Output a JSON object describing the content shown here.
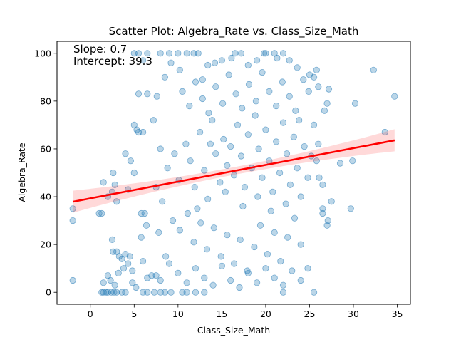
{
  "chart_data": {
    "type": "scatter",
    "title": "Scatter Plot: Algebra_Rate vs. Class_Size_Math",
    "xlabel": "Class_Size_Math",
    "ylabel": "Algebra_Rate",
    "xlim": [
      -3.8,
      36.5
    ],
    "ylim": [
      -5,
      105
    ],
    "xticks": [
      0,
      5,
      10,
      15,
      20,
      25,
      30,
      35
    ],
    "yticks": [
      0,
      20,
      40,
      60,
      80,
      100
    ],
    "grid": false,
    "annotations": [
      {
        "id": "slope",
        "text": "Slope: 0.7"
      },
      {
        "id": "intercept",
        "text": "Intercept: 39.3"
      }
    ],
    "point_color": "#1f77b4",
    "point_alpha": 0.3,
    "series": [
      {
        "values": [
          [
            -2.0,
            35
          ],
          [
            -2.0,
            30
          ],
          [
            -2.0,
            5
          ],
          [
            1.0,
            33
          ],
          [
            1.3,
            33
          ],
          [
            1.5,
            46
          ],
          [
            2.0,
            40
          ],
          [
            2.5,
            42
          ],
          [
            2.6,
            50
          ],
          [
            2.8,
            45
          ],
          [
            3.0,
            38
          ],
          [
            2.5,
            22
          ],
          [
            2.6,
            17
          ],
          [
            3.0,
            17
          ],
          [
            3.3,
            15
          ],
          [
            3.6,
            14
          ],
          [
            4.0,
            16
          ],
          [
            4.5,
            15
          ],
          [
            4.8,
            9
          ],
          [
            1.3,
            0
          ],
          [
            1.5,
            0
          ],
          [
            1.8,
            0
          ],
          [
            2.0,
            0
          ],
          [
            2.4,
            0
          ],
          [
            2.7,
            0
          ],
          [
            3.0,
            0
          ],
          [
            3.6,
            0
          ],
          [
            4.0,
            0
          ],
          [
            1.5,
            4
          ],
          [
            2.0,
            7
          ],
          [
            2.3,
            5
          ],
          [
            2.8,
            3
          ],
          [
            3.2,
            8
          ],
          [
            3.8,
            10
          ],
          [
            4.3,
            12
          ],
          [
            4.8,
            4
          ],
          [
            5.2,
            2
          ],
          [
            6.0,
            0
          ],
          [
            6.5,
            0
          ],
          [
            7.3,
            0
          ],
          [
            8.0,
            0
          ],
          [
            8.5,
            0
          ],
          [
            9.2,
            0
          ],
          [
            10.5,
            0
          ],
          [
            11.0,
            0
          ],
          [
            12.0,
            0
          ],
          [
            13.0,
            0
          ],
          [
            22.0,
            0
          ],
          [
            25.5,
            0
          ],
          [
            5.0,
            100
          ],
          [
            5.5,
            100
          ],
          [
            6.0,
            97
          ],
          [
            6.5,
            100
          ],
          [
            8.0,
            100
          ],
          [
            9.0,
            100
          ],
          [
            10.0,
            100
          ],
          [
            11.0,
            100
          ],
          [
            11.8,
            100
          ],
          [
            12.3,
            100
          ],
          [
            16.5,
            100
          ],
          [
            17.2,
            100
          ],
          [
            19.8,
            100
          ],
          [
            20.0,
            100
          ],
          [
            21.0,
            100
          ],
          [
            22.0,
            100
          ],
          [
            5.0,
            70
          ],
          [
            5.3,
            68
          ],
          [
            5.5,
            67
          ],
          [
            6.0,
            67
          ],
          [
            5.5,
            83
          ],
          [
            6.5,
            83
          ],
          [
            4.0,
            58
          ],
          [
            4.6,
            55
          ],
          [
            5.0,
            50
          ],
          [
            4.3,
            43
          ],
          [
            5.8,
            33
          ],
          [
            6.2,
            33
          ],
          [
            6.4,
            28
          ],
          [
            5.8,
            23
          ],
          [
            6.0,
            13
          ],
          [
            7.0,
            7
          ],
          [
            6.5,
            6
          ],
          [
            7.5,
            7
          ],
          [
            8.0,
            5
          ],
          [
            28.5,
            54
          ],
          [
            27.5,
            38
          ],
          [
            29.7,
            35
          ],
          [
            29.9,
            55
          ],
          [
            30.2,
            79
          ],
          [
            32.3,
            93
          ],
          [
            33.6,
            67
          ],
          [
            34.7,
            82
          ],
          [
            27.0,
            28
          ],
          [
            27.1,
            30
          ],
          [
            26.5,
            33
          ],
          [
            26.5,
            45
          ],
          [
            26.1,
            48
          ],
          [
            26.5,
            35
          ],
          [
            27.2,
            85
          ],
          [
            26.0,
            86
          ],
          [
            26.7,
            76
          ],
          [
            27.0,
            79
          ],
          [
            25.5,
            90
          ],
          [
            25.0,
            91
          ],
          [
            25.8,
            93
          ],
          [
            7.2,
            72
          ],
          [
            7.6,
            82
          ],
          [
            8.5,
            90
          ],
          [
            9.2,
            96
          ],
          [
            10.2,
            93
          ],
          [
            12.8,
            89
          ],
          [
            13.4,
            95
          ],
          [
            14.2,
            96
          ],
          [
            15.0,
            97
          ],
          [
            16.1,
            98
          ],
          [
            18.0,
            95
          ],
          [
            19.0,
            97
          ],
          [
            21.3,
            98
          ],
          [
            22.7,
            97
          ],
          [
            23.6,
            94
          ],
          [
            24.3,
            89
          ],
          [
            24.9,
            84
          ],
          [
            8.8,
            52
          ],
          [
            9.6,
            58
          ],
          [
            10.1,
            47
          ],
          [
            10.9,
            62
          ],
          [
            11.4,
            55
          ],
          [
            11.9,
            44
          ],
          [
            12.5,
            67
          ],
          [
            13.0,
            51
          ],
          [
            13.4,
            39
          ],
          [
            13.9,
            72
          ],
          [
            14.3,
            58
          ],
          [
            14.8,
            46
          ],
          [
            15.2,
            64
          ],
          [
            15.6,
            53
          ],
          [
            16.0,
            61
          ],
          [
            16.4,
            49
          ],
          [
            16.8,
            70
          ],
          [
            17.2,
            57
          ],
          [
            17.6,
            44
          ],
          [
            18.0,
            66
          ],
          [
            18.4,
            52
          ],
          [
            18.8,
            74
          ],
          [
            19.2,
            60
          ],
          [
            19.6,
            48
          ],
          [
            20.0,
            68
          ],
          [
            20.4,
            55
          ],
          [
            20.8,
            42
          ],
          [
            21.2,
            63
          ],
          [
            21.6,
            50
          ],
          [
            22.0,
            71
          ],
          [
            22.4,
            58
          ],
          [
            22.8,
            45
          ],
          [
            23.2,
            65
          ],
          [
            23.6,
            52
          ],
          [
            24.0,
            40
          ],
          [
            24.4,
            61
          ],
          [
            24.8,
            48
          ],
          [
            25.2,
            57
          ],
          [
            9.4,
            30
          ],
          [
            10.2,
            26
          ],
          [
            11.1,
            33
          ],
          [
            11.8,
            21
          ],
          [
            12.6,
            29
          ],
          [
            13.3,
            18
          ],
          [
            14.1,
            27
          ],
          [
            14.9,
            15
          ],
          [
            15.6,
            24
          ],
          [
            16.4,
            12
          ],
          [
            17.1,
            22
          ],
          [
            17.9,
            9
          ],
          [
            18.7,
            19
          ],
          [
            19.4,
            28
          ],
          [
            20.2,
            16
          ],
          [
            21.0,
            25
          ],
          [
            21.7,
            13
          ],
          [
            22.5,
            23
          ],
          [
            23.3,
            31
          ],
          [
            24.0,
            20
          ],
          [
            24.8,
            10
          ],
          [
            10.5,
            84
          ],
          [
            11.3,
            78
          ],
          [
            12.0,
            88
          ],
          [
            12.8,
            81
          ],
          [
            13.5,
            75
          ],
          [
            14.3,
            86
          ],
          [
            15.1,
            79
          ],
          [
            15.8,
            91
          ],
          [
            16.6,
            83
          ],
          [
            17.3,
            77
          ],
          [
            18.1,
            87
          ],
          [
            18.9,
            80
          ],
          [
            19.6,
            92
          ],
          [
            20.4,
            84
          ],
          [
            21.2,
            78
          ],
          [
            21.9,
            88
          ],
          [
            22.7,
            82
          ],
          [
            23.4,
            76
          ],
          [
            9.0,
            12
          ],
          [
            10.0,
            8
          ],
          [
            11.0,
            4
          ],
          [
            12.0,
            10
          ],
          [
            13.0,
            6
          ],
          [
            14.0,
            3
          ],
          [
            15.0,
            11
          ],
          [
            16.0,
            5
          ],
          [
            17.0,
            2
          ],
          [
            18.0,
            8
          ],
          [
            19.0,
            4
          ],
          [
            20.0,
            10
          ],
          [
            21.0,
            6
          ],
          [
            22.0,
            3
          ],
          [
            23.0,
            9
          ],
          [
            24.0,
            5
          ],
          [
            7.5,
            44
          ],
          [
            8.2,
            38
          ],
          [
            8.0,
            60
          ],
          [
            7.8,
            25
          ],
          [
            8.6,
            15
          ],
          [
            12.2,
            35
          ],
          [
            13.7,
            62
          ],
          [
            15.4,
            42
          ],
          [
            17.4,
            36
          ],
          [
            19.1,
            40
          ],
          [
            20.6,
            34
          ],
          [
            22.3,
            37
          ],
          [
            23.8,
            72
          ],
          [
            25.5,
            70
          ],
          [
            26.0,
            62
          ],
          [
            25.8,
            55
          ]
        ]
      }
    ],
    "regression": {
      "slope": 0.7,
      "intercept": 39.3,
      "x_start": -2.0,
      "x_end": 34.7,
      "line_color": "#ff0000",
      "band_color": "#ff0000",
      "band_alpha": 0.15
    }
  }
}
